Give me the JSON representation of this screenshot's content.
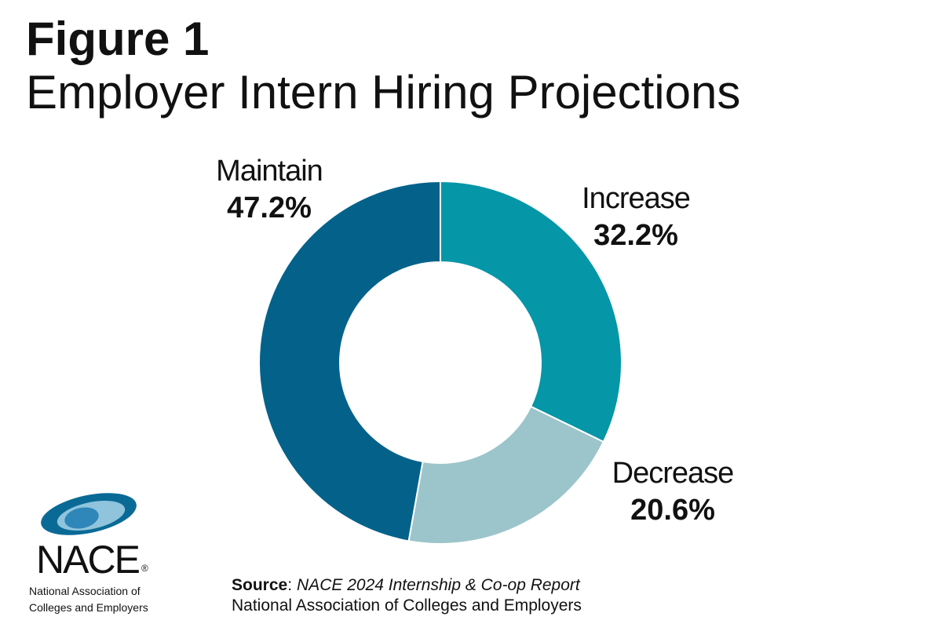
{
  "chart_data": {
    "type": "donut",
    "title": "Figure 1",
    "subtitle": "Employer Intern Hiring Projections",
    "categories": [
      "Increase",
      "Decrease",
      "Maintain"
    ],
    "values": [
      32.2,
      20.6,
      47.2
    ],
    "value_labels": [
      "32.2%",
      "20.6%",
      "47.2%"
    ],
    "colors": [
      "#0596a8",
      "#9cc5cb",
      "#04628a"
    ],
    "source": {
      "label": "Source",
      "punctuation": ":",
      "title": "NACE 2024 Internship & Co-op Report",
      "publisher": "National Association of Colleges and Employers"
    },
    "logo": {
      "name": "NACE",
      "mark": "®",
      "line1": "National Association of",
      "line2": "Colleges and Employers"
    }
  }
}
